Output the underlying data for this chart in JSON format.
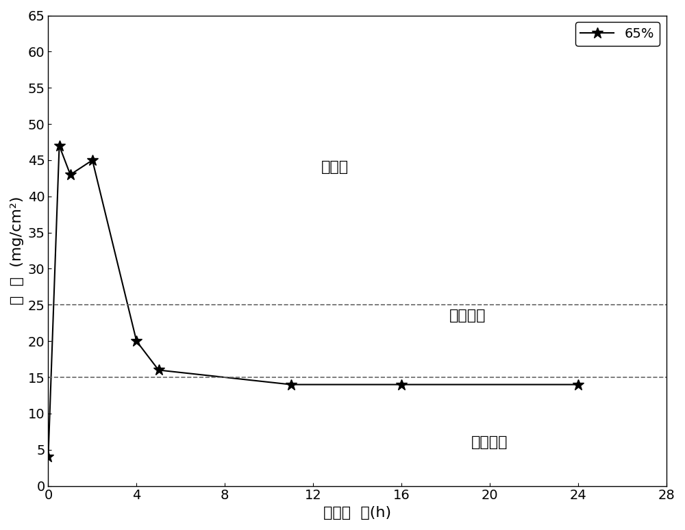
{
  "x_data": [
    0,
    0.5,
    1,
    2,
    4,
    5,
    11,
    16,
    24
  ],
  "y_data": [
    4,
    47,
    43,
    45,
    20,
    16,
    14,
    14,
    14
  ],
  "hline1": 25,
  "hline2": 15,
  "xlim": [
    0,
    28
  ],
  "ylim": [
    0,
    65
  ],
  "xticks": [
    0,
    4,
    8,
    12,
    16,
    20,
    24,
    28
  ],
  "yticks": [
    0,
    5,
    10,
    15,
    20,
    25,
    30,
    35,
    40,
    45,
    50,
    55,
    60,
    65
  ],
  "xlabel": "退火时  间(h)",
  "ylabel": "失  重  (mg/cm²)",
  "legend_label": "65%",
  "zone1_label": "敏感区",
  "zone2_label": "介敏感区",
  "zone3_label": "不敏感区",
  "zone1_x": 13,
  "zone1_y": 44,
  "zone2_x": 19,
  "zone2_y": 23.5,
  "zone3_x": 20,
  "zone3_y": 6,
  "line_color": "#000000",
  "marker": "*",
  "marker_size": 12,
  "hline_color": "#666666",
  "background_color": "#ffffff",
  "label_fontsize": 16,
  "tick_fontsize": 14,
  "legend_fontsize": 14,
  "zone_fontsize": 16
}
